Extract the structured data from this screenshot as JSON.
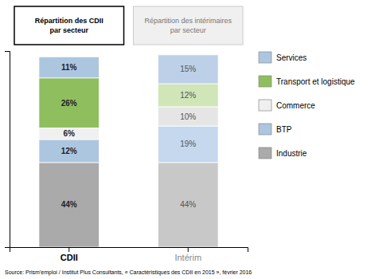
{
  "chart_data": {
    "type": "bar",
    "stacked": true,
    "data_labels": true,
    "tick_labels": "x",
    "legend": "right",
    "categories": [
      "CDII",
      "Intérim"
    ],
    "ylim": [
      0,
      102
    ],
    "series": [
      {
        "name": "Industrie",
        "color": "#aaaaaa",
        "colors": [
          "#aaaaaa",
          "#c8c8c8"
        ],
        "values": [
          44,
          44
        ],
        "value_labels": [
          "44%",
          "44%"
        ]
      },
      {
        "name": "BTP",
        "color": "#adc6e0",
        "colors": [
          "#adc6e0",
          "#c5d8ed"
        ],
        "values": [
          12,
          19
        ],
        "value_labels": [
          "12%",
          "19%"
        ]
      },
      {
        "name": "Commerce",
        "color": "#f0f0f0",
        "colors": [
          "#f0f0f0",
          "#e5e5e5"
        ],
        "values": [
          6,
          10
        ],
        "value_labels": [
          "6%",
          "10%"
        ]
      },
      {
        "name": "Transport et logistique",
        "color": "#8fbe5f",
        "colors": [
          "#8fbe5f",
          "#d0e5b8"
        ],
        "values": [
          26,
          12
        ],
        "value_labels": [
          "26%",
          "12%"
        ]
      },
      {
        "name": "Services",
        "color": "#adc6e0",
        "colors": [
          "#adc6e0",
          "#bdd0e8"
        ],
        "values": [
          11,
          15
        ],
        "value_labels": [
          "11%",
          "15%"
        ]
      }
    ],
    "annotations": [
      {
        "text": "Répartition des CDII\npar secteur",
        "category": "CDII"
      },
      {
        "text": "Répartition des intérimaires\npar secteur",
        "category": "Intérim"
      },
      {
        "text": "Source: Prism'emploi / Institut Plus Consultants, « Caractéristiques des CDII en 2015 », février 2016"
      }
    ]
  }
}
